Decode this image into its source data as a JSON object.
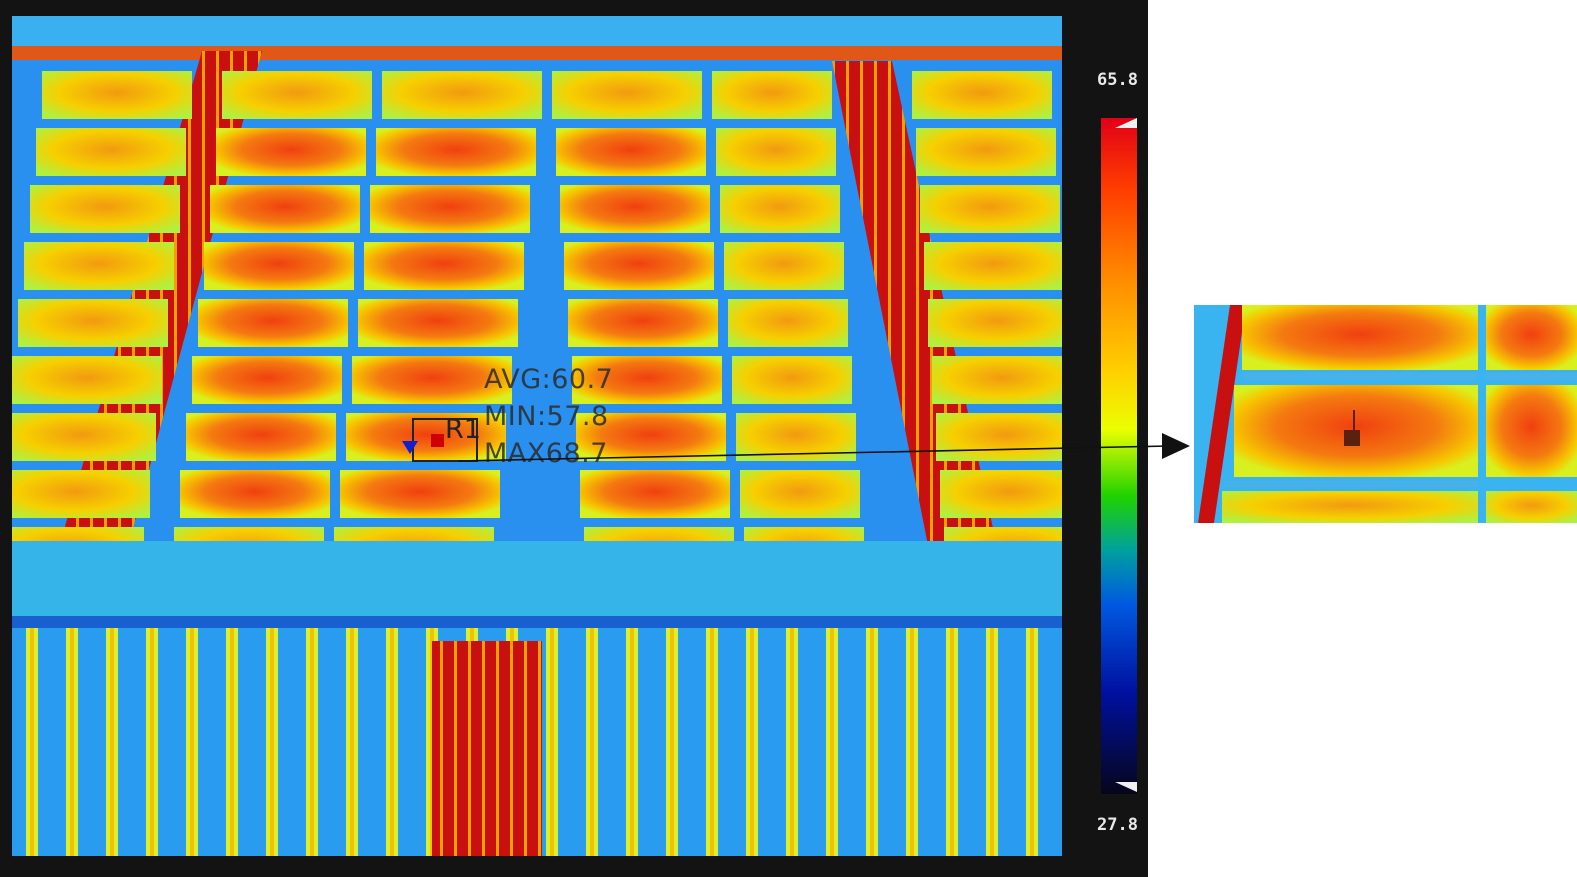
{
  "scale": {
    "max": "65.8",
    "min": "27.8"
  },
  "measurement": {
    "roi_label": "R1",
    "avg": "AVG:60.7",
    "min": "MIN:57.8",
    "max": "MAX68.7"
  },
  "colors": {
    "hot": "#e00018",
    "warm": "#ff8c00",
    "mid": "#ecff00",
    "cool": "#2a8ef0",
    "cold": "#06061a"
  }
}
